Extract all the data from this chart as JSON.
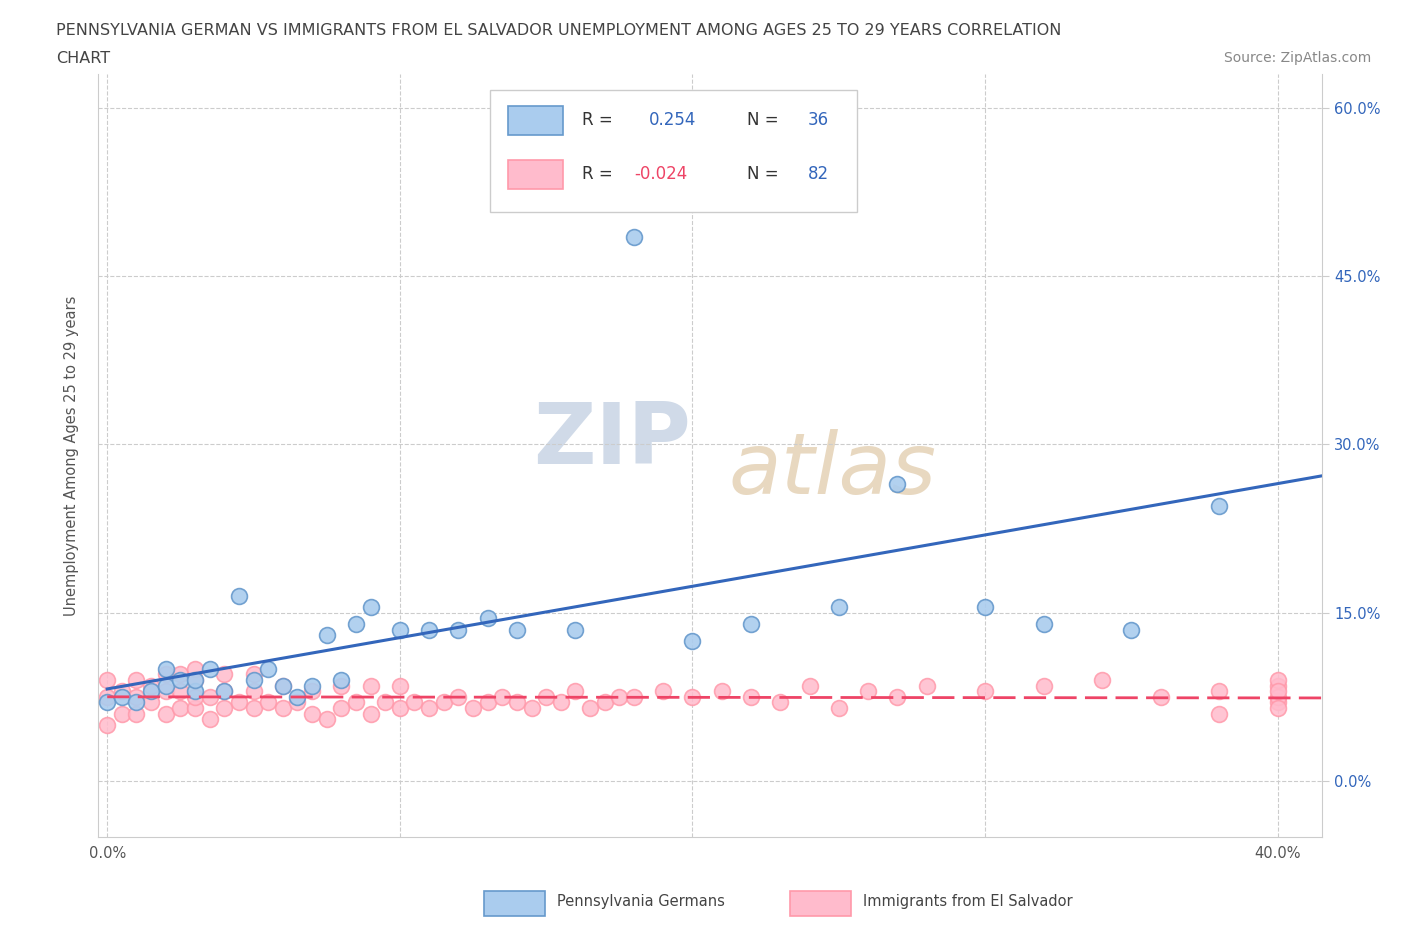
{
  "title_line1": "PENNSYLVANIA GERMAN VS IMMIGRANTS FROM EL SALVADOR UNEMPLOYMENT AMONG AGES 25 TO 29 YEARS CORRELATION",
  "title_line2": "CHART",
  "source_text": "Source: ZipAtlas.com",
  "ylabel": "Unemployment Among Ages 25 to 29 years",
  "xlim": [
    -0.003,
    0.415
  ],
  "ylim": [
    -0.05,
    0.63
  ],
  "xticks": [
    0.0,
    0.1,
    0.2,
    0.3,
    0.4
  ],
  "xtick_labels": [
    "0.0%",
    "",
    "",
    "",
    "40.0%"
  ],
  "yticks_right": [
    0.6,
    0.45,
    0.3,
    0.15,
    0.0
  ],
  "ytick_labels_right": [
    "60.0%",
    "45.0%",
    "30.0%",
    "15.0%",
    "0.0%"
  ],
  "grid_color": "#cccccc",
  "background_color": "#ffffff",
  "blue_fill": "#aaccee",
  "blue_edge": "#6699cc",
  "pink_fill": "#ffbbcc",
  "pink_edge": "#ff99aa",
  "line_blue": "#3366bb",
  "line_pink": "#ee4466",
  "R_blue": 0.254,
  "N_blue": 36,
  "R_pink": -0.024,
  "N_pink": 82,
  "watermark_zip": "ZIP",
  "watermark_atlas": "atlas",
  "blue_x": [
    0.0,
    0.005,
    0.01,
    0.015,
    0.02,
    0.02,
    0.025,
    0.03,
    0.03,
    0.035,
    0.04,
    0.045,
    0.05,
    0.055,
    0.06,
    0.065,
    0.07,
    0.075,
    0.08,
    0.085,
    0.09,
    0.1,
    0.11,
    0.12,
    0.13,
    0.14,
    0.16,
    0.18,
    0.2,
    0.22,
    0.25,
    0.27,
    0.3,
    0.32,
    0.35,
    0.38
  ],
  "blue_y": [
    0.07,
    0.075,
    0.07,
    0.08,
    0.085,
    0.1,
    0.09,
    0.08,
    0.09,
    0.1,
    0.08,
    0.165,
    0.09,
    0.1,
    0.085,
    0.075,
    0.085,
    0.13,
    0.09,
    0.14,
    0.155,
    0.135,
    0.135,
    0.135,
    0.145,
    0.135,
    0.135,
    0.485,
    0.125,
    0.14,
    0.155,
    0.265,
    0.155,
    0.14,
    0.135,
    0.245
  ],
  "pink_x": [
    0.0,
    0.0,
    0.0,
    0.005,
    0.005,
    0.01,
    0.01,
    0.01,
    0.015,
    0.015,
    0.02,
    0.02,
    0.02,
    0.025,
    0.025,
    0.025,
    0.03,
    0.03,
    0.03,
    0.03,
    0.035,
    0.035,
    0.04,
    0.04,
    0.04,
    0.045,
    0.05,
    0.05,
    0.05,
    0.055,
    0.06,
    0.06,
    0.065,
    0.07,
    0.07,
    0.075,
    0.08,
    0.08,
    0.085,
    0.09,
    0.09,
    0.095,
    0.1,
    0.1,
    0.105,
    0.11,
    0.115,
    0.12,
    0.125,
    0.13,
    0.135,
    0.14,
    0.145,
    0.15,
    0.155,
    0.16,
    0.165,
    0.17,
    0.175,
    0.18,
    0.19,
    0.2,
    0.21,
    0.22,
    0.23,
    0.24,
    0.25,
    0.26,
    0.27,
    0.28,
    0.3,
    0.32,
    0.34,
    0.36,
    0.38,
    0.38,
    0.4,
    0.4,
    0.4,
    0.4,
    0.4,
    0.4
  ],
  "pink_y": [
    0.05,
    0.075,
    0.09,
    0.06,
    0.08,
    0.06,
    0.075,
    0.09,
    0.07,
    0.085,
    0.06,
    0.08,
    0.095,
    0.065,
    0.08,
    0.095,
    0.065,
    0.075,
    0.09,
    0.1,
    0.055,
    0.075,
    0.065,
    0.08,
    0.095,
    0.07,
    0.065,
    0.08,
    0.095,
    0.07,
    0.065,
    0.085,
    0.07,
    0.06,
    0.08,
    0.055,
    0.065,
    0.085,
    0.07,
    0.06,
    0.085,
    0.07,
    0.065,
    0.085,
    0.07,
    0.065,
    0.07,
    0.075,
    0.065,
    0.07,
    0.075,
    0.07,
    0.065,
    0.075,
    0.07,
    0.08,
    0.065,
    0.07,
    0.075,
    0.075,
    0.08,
    0.075,
    0.08,
    0.075,
    0.07,
    0.085,
    0.065,
    0.08,
    0.075,
    0.085,
    0.08,
    0.085,
    0.09,
    0.075,
    0.06,
    0.08,
    0.07,
    0.085,
    0.075,
    0.09,
    0.065,
    0.08
  ],
  "blue_line_x0": 0.0,
  "blue_line_x1": 0.415,
  "blue_line_y0": 0.082,
  "blue_line_y1": 0.272,
  "pink_line_x0": 0.0,
  "pink_line_x1": 0.415,
  "pink_line_y0": 0.075,
  "pink_line_y1": 0.074
}
